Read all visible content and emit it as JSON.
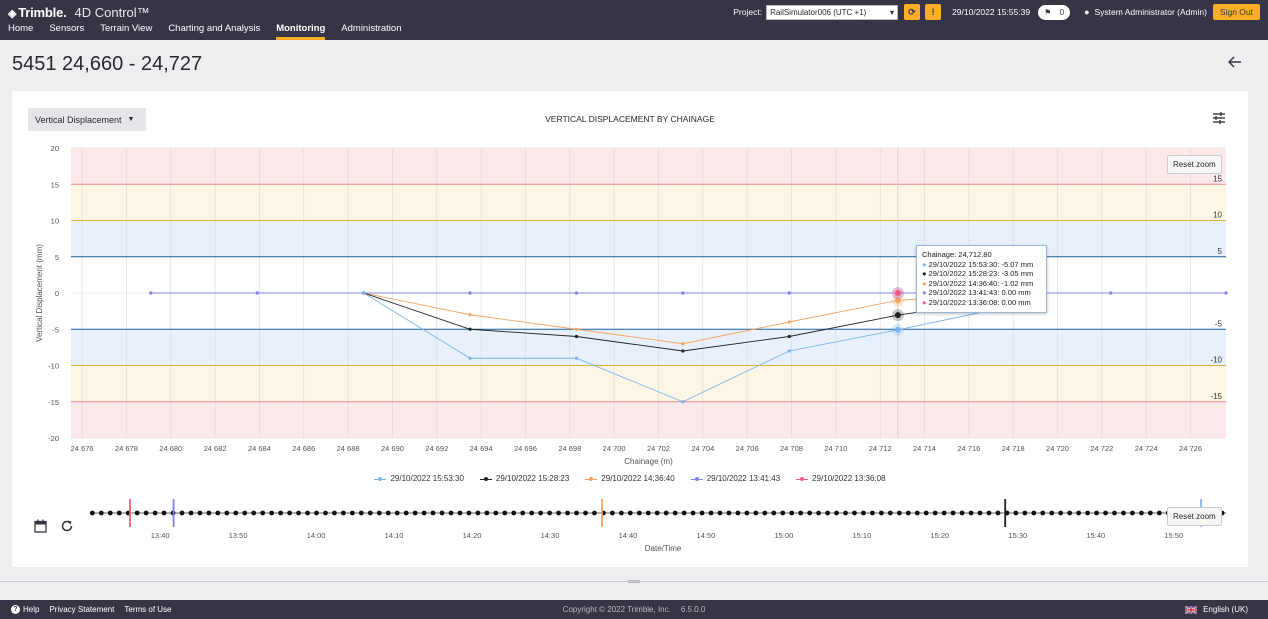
{
  "header": {
    "brand": "Trimble.",
    "product": "4D Control™",
    "nav": [
      {
        "label": "Home",
        "active": false
      },
      {
        "label": "Sensors",
        "active": false
      },
      {
        "label": "Terrain View",
        "active": false
      },
      {
        "label": "Charting and Analysis",
        "active": false
      },
      {
        "label": "Monitoring",
        "active": true
      },
      {
        "label": "Administration",
        "active": false
      }
    ],
    "project_label": "Project:",
    "project_value": "RailSimulator006 (UTC +1)",
    "datetime": "29/10/2022 15:55:39",
    "message_count": "0",
    "user": "System Administrator (Admin)",
    "signout": "Sign Out",
    "accent_color": "#fbad26",
    "bg_color": "#363545"
  },
  "page": {
    "title": "5451 24,660 - 24,727"
  },
  "card": {
    "dropdown_label": "Vertical Displacement",
    "chart_title": "VERTICAL DISPLACEMENT BY CHAINAGE",
    "reset_zoom": "Reset zoom"
  },
  "tooltip": {
    "title": "Chainage: 24,712.80",
    "rows": [
      {
        "text": "29/10/2022 15:53:30: -5.07 mm",
        "color": "#7cb5ec"
      },
      {
        "text": "29/10/2022 15:28:23: -3.05 mm",
        "color": "#222222"
      },
      {
        "text": "29/10/2022 14:36:40: -1.02 mm",
        "color": "#f7a35c"
      },
      {
        "text": "29/10/2022 13:41:43: 0.00 mm",
        "color": "#8085e9"
      },
      {
        "text": "29/10/2022 13:36:08: 0.00 mm",
        "color": "#f15c80"
      }
    ]
  },
  "chart_data": [
    {
      "type": "line",
      "title": "VERTICAL DISPLACEMENT BY CHAINAGE",
      "xlabel": "Chainage (m)",
      "ylabel": "Vertical Displacement (mm)",
      "xlim": [
        24675.5,
        24727.6
      ],
      "ylim": [
        -20,
        20
      ],
      "x_ticks": [
        24676,
        24678,
        24680,
        24682,
        24684,
        24686,
        24688,
        24690,
        24692,
        24694,
        24696,
        24698,
        24700,
        24702,
        24704,
        24706,
        24708,
        24710,
        24712,
        24714,
        24716,
        24718,
        24720,
        24722,
        24724,
        24726
      ],
      "x_tick_labels": [
        "24 676",
        "24 678",
        "24 680",
        "24 682",
        "24 684",
        "24 686",
        "24 688",
        "24 690",
        "24 692",
        "24 694",
        "24 696",
        "24 698",
        "24 700",
        "24 702",
        "24 704",
        "24 706",
        "24 708",
        "24 710",
        "24 712",
        "24 714",
        "24 716",
        "24 718",
        "24 720",
        "24 722",
        "24 724",
        "24 726"
      ],
      "y_ticks": [
        20,
        15,
        10,
        5,
        0,
        -5,
        -10,
        -15,
        -20
      ],
      "grid": true,
      "legend": "bottom",
      "bands": [
        {
          "from": 15,
          "to": 20,
          "color": "#fde8ea"
        },
        {
          "from": 10,
          "to": 15,
          "color": "#fdf6e4"
        },
        {
          "from": 5,
          "to": 10,
          "color": "#e8f1fb"
        },
        {
          "from": -10,
          "to": -5,
          "color": "#e8f1fb"
        },
        {
          "from": -15,
          "to": -10,
          "color": "#fdf6e4"
        },
        {
          "from": -20,
          "to": -15,
          "color": "#fde8ea"
        }
      ],
      "threshold_lines": [
        {
          "value": 15,
          "label": "15",
          "color": "#e88a8a"
        },
        {
          "value": 10,
          "label": "10",
          "color": "#e0b040"
        },
        {
          "value": 5,
          "label": "5",
          "color": "#1f5f9e"
        },
        {
          "value": -5,
          "label": "-5",
          "color": "#1f5f9e"
        },
        {
          "value": -10,
          "label": "-10",
          "color": "#e0b040"
        },
        {
          "value": -15,
          "label": "-15",
          "color": "#e88a8a"
        }
      ],
      "series": [
        {
          "name": "29/10/2022 15:53:30",
          "color": "#7cb5ec",
          "x": [
            24688.7,
            24693.5,
            24698.3,
            24703.1,
            24707.9,
            24712.8,
            24717.6
          ],
          "y": [
            0,
            -9,
            -9,
            -15,
            -8,
            -5.07,
            -2
          ]
        },
        {
          "name": "29/10/2022 15:28:23",
          "color": "#222222",
          "x": [
            24688.7,
            24693.5,
            24698.3,
            24703.1,
            24707.9,
            24712.8,
            24717.6
          ],
          "y": [
            0,
            -5,
            -6,
            -8,
            -6,
            -3.05,
            -1
          ]
        },
        {
          "name": "29/10/2022 14:36:40",
          "color": "#f7a35c",
          "x": [
            24688.7,
            24693.5,
            24698.3,
            24703.1,
            24707.9,
            24712.8,
            24717.6
          ],
          "y": [
            0,
            -3,
            -5,
            -7,
            -4,
            -1.02,
            0
          ]
        },
        {
          "name": "29/10/2022 13:41:43",
          "color": "#8085e9",
          "x": [
            24679.1,
            24683.9,
            24688.7,
            24693.5,
            24698.3,
            24703.1,
            24707.9,
            24712.8,
            24717.6,
            24722.4,
            24727.6
          ],
          "y": [
            0,
            0,
            0,
            0,
            0,
            0,
            0,
            0,
            0,
            0,
            0
          ]
        },
        {
          "name": "29/10/2022 13:36:08",
          "color": "#f15c80",
          "x": [
            24679.1,
            24683.9,
            24688.7,
            24693.5,
            24698.3,
            24703.1,
            24707.9,
            24712.8,
            24717.6,
            24722.4,
            24727.6
          ],
          "y": [
            0,
            0,
            0,
            0,
            0,
            0,
            0,
            0,
            0,
            0,
            0
          ]
        }
      ]
    },
    {
      "type": "scatter",
      "xlabel": "Date/Time",
      "x_tick_labels": [
        "13:40",
        "13:50",
        "14:00",
        "14:10",
        "14:20",
        "14:30",
        "14:40",
        "14:50",
        "15:00",
        "15:10",
        "15:20",
        "15:30",
        "15:40",
        "15:50"
      ],
      "x_tick_minutes": [
        820,
        830,
        840,
        850,
        860,
        870,
        880,
        890,
        900,
        910,
        920,
        930,
        940,
        950
      ],
      "xlim_minutes": [
        811,
        956.7
      ],
      "point_interval_minutes": 1.15,
      "markers": [
        {
          "time": "13:36:08",
          "minute": 816.13,
          "color": "#f15c80"
        },
        {
          "time": "13:41:43",
          "minute": 821.72,
          "color": "#8085e9"
        },
        {
          "time": "14:36:40",
          "minute": 876.67,
          "color": "#f7a35c"
        },
        {
          "time": "15:28:23",
          "minute": 928.38,
          "color": "#222222"
        },
        {
          "time": "15:53:30",
          "minute": 953.5,
          "color": "#7cb5ec"
        }
      ]
    }
  ],
  "footer": {
    "help": "Help",
    "privacy": "Privacy Statement",
    "terms": "Terms of Use",
    "copyright": "Copyright © 2022  Trimble, Inc.",
    "version": "6.5.0.0",
    "language": "English (UK)"
  }
}
